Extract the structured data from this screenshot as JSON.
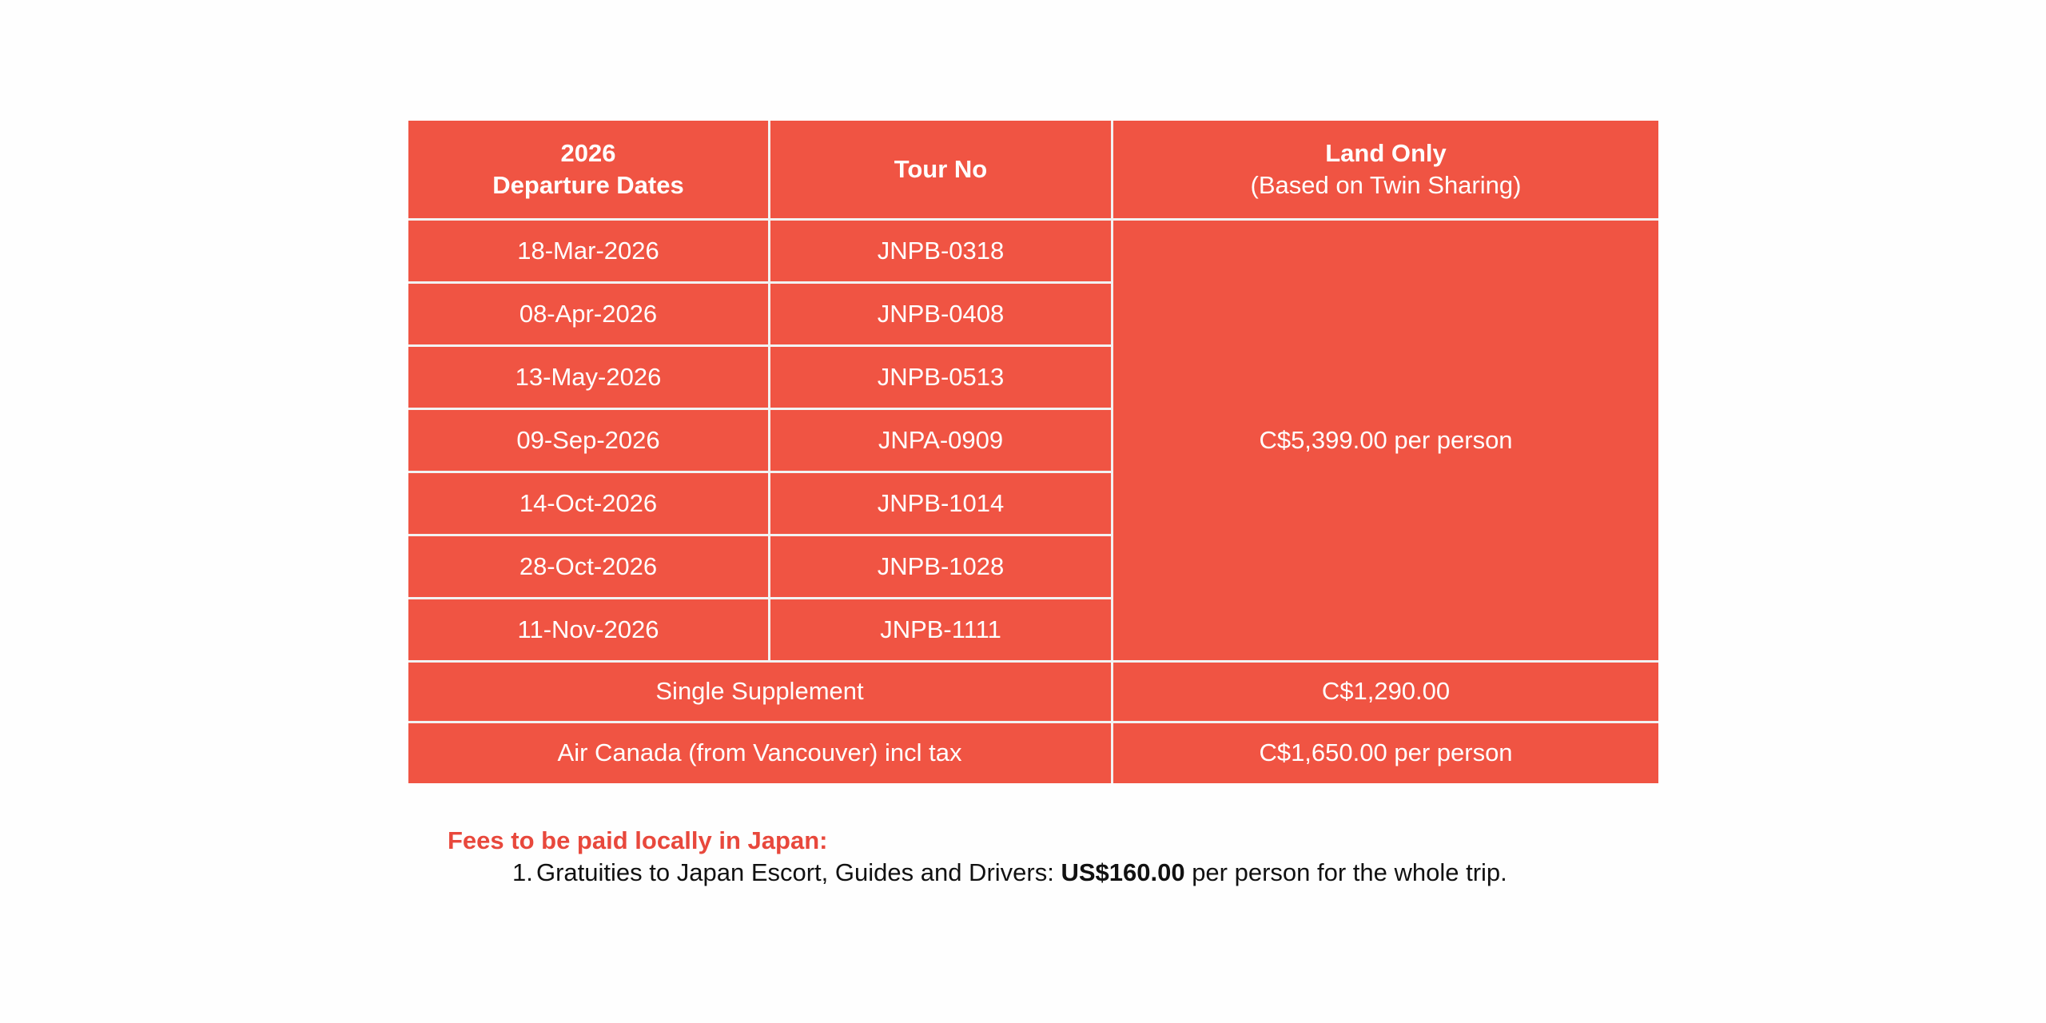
{
  "table": {
    "header": {
      "col1_line1": "2026",
      "col1_line2": "Departure Dates",
      "col2": "Tour No",
      "col3_line1": "Land Only",
      "col3_line2": "(Based on Twin Sharing)"
    },
    "rows": [
      {
        "date": "18-Mar-2026",
        "tour": "JNPB-0318"
      },
      {
        "date": "08-Apr-2026",
        "tour": "JNPB-0408"
      },
      {
        "date": "13-May-2026",
        "tour": "JNPB-0513"
      },
      {
        "date": "09-Sep-2026",
        "tour": "JNPA-0909"
      },
      {
        "date": "14-Oct-2026",
        "tour": "JNPB-1014"
      },
      {
        "date": "28-Oct-2026",
        "tour": "JNPB-1028"
      },
      {
        "date": "11-Nov-2026",
        "tour": "JNPB-1111"
      }
    ],
    "land_price": "C$5,399.00 per person",
    "single_supplement": {
      "label": "Single Supplement",
      "value": "C$1,290.00"
    },
    "air": {
      "label": "Air Canada (from Vancouver) incl tax",
      "value": "C$1,650.00 per person"
    }
  },
  "fees": {
    "title": "Fees to be paid locally in Japan:",
    "items": [
      {
        "number": "1.",
        "text_before": "Gratuities to Japan Escort, Guides and Drivers: ",
        "amount": "US$160.00",
        "text_after": " per person for the whole trip."
      }
    ]
  },
  "colors": {
    "table_fill": "#f05443",
    "grid_lines": "#f2f2f2",
    "fees_title": "#e8483c"
  }
}
